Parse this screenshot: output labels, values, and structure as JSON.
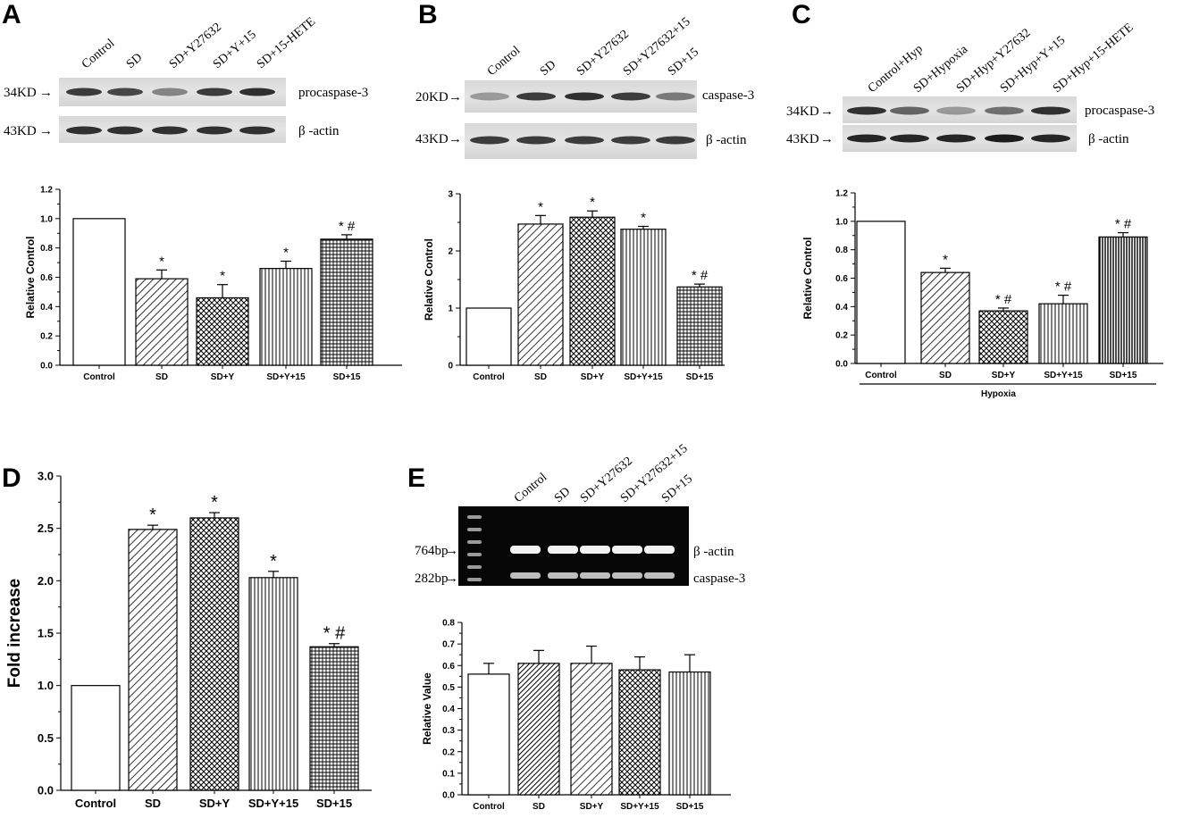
{
  "panels": {
    "A": {
      "letter": "A",
      "blot": {
        "lanes": [
          "Control",
          "SD",
          "SD+Y27632",
          "SD+Y+15",
          "SD+15-HETE"
        ],
        "rows": [
          {
            "marker": "34KD",
            "protein": "procaspase-3",
            "intensity": [
              0.8,
              0.75,
              0.45,
              0.8,
              0.85
            ]
          },
          {
            "marker": "43KD",
            "protein": "β -actin",
            "intensity": [
              0.85,
              0.85,
              0.85,
              0.85,
              0.85
            ]
          }
        ]
      }
    },
    "B": {
      "letter": "B",
      "blot": {
        "lanes": [
          "Control",
          "SD",
          "SD+Y27632",
          "SD+Y27632+15",
          "SD+15"
        ],
        "rows": [
          {
            "marker": "20KD",
            "protein": "caspase-3",
            "intensity": [
              0.35,
              0.8,
              0.85,
              0.8,
              0.5
            ]
          },
          {
            "marker": "43KD",
            "protein": "β -actin",
            "intensity": [
              0.8,
              0.8,
              0.8,
              0.8,
              0.8
            ]
          }
        ]
      }
    },
    "C": {
      "letter": "C",
      "blot": {
        "lanes": [
          "Control+Hyp",
          "SD+Hypoxia",
          "SD+Hyp+Y27632",
          "SD+Hyp+Y+15",
          "SD+Hyp+15-HETE"
        ],
        "rows": [
          {
            "marker": "34KD",
            "protein": "procaspase-3",
            "intensity": [
              0.85,
              0.6,
              0.35,
              0.55,
              0.85
            ]
          },
          {
            "marker": "43KD",
            "protein": "β -actin",
            "intensity": [
              0.9,
              0.9,
              0.9,
              0.95,
              0.9
            ]
          }
        ]
      },
      "group_label": "Hypoxia"
    },
    "D": {
      "letter": "D"
    },
    "E": {
      "letter": "E",
      "gel": {
        "lanes": [
          "Control",
          "SD",
          "SD+Y27632",
          "SD+Y27632+15",
          "SD+15"
        ],
        "rows": [
          {
            "marker": "764bp",
            "product": "β -actin"
          },
          {
            "marker": "282bp",
            "product": "caspase-3"
          }
        ]
      }
    }
  },
  "chart_data": [
    {
      "id": "A",
      "type": "bar",
      "categories": [
        "Control",
        "SD",
        "SD+Y",
        "SD+Y+15",
        "SD+15"
      ],
      "values": [
        1.0,
        0.59,
        0.46,
        0.66,
        0.86
      ],
      "errors": [
        0,
        0.06,
        0.09,
        0.05,
        0.03
      ],
      "significance": [
        "",
        "*",
        "*",
        "*",
        "* #"
      ],
      "fills": [
        "none",
        "diag",
        "cross",
        "vert",
        "grid"
      ],
      "ylabel": "Relative Control",
      "ylim": [
        0.0,
        1.2
      ],
      "yticks": [
        "0.0",
        "0.2",
        "0.4",
        "0.6",
        "0.8",
        "1.0",
        "1.2"
      ]
    },
    {
      "id": "B",
      "type": "bar",
      "categories": [
        "Control",
        "SD",
        "SD+Y",
        "SD+Y+15",
        "SD+15"
      ],
      "values": [
        1.0,
        2.47,
        2.59,
        2.38,
        1.37
      ],
      "errors": [
        0,
        0.15,
        0.11,
        0.05,
        0.05
      ],
      "significance": [
        "",
        "*",
        "*",
        "*",
        "* #"
      ],
      "fills": [
        "none",
        "diag",
        "cross",
        "vert",
        "grid"
      ],
      "ylabel": "Relative Control",
      "ylim": [
        0,
        3
      ],
      "yticks": [
        "0",
        "1",
        "2",
        "3"
      ]
    },
    {
      "id": "C",
      "type": "bar",
      "categories": [
        "Control",
        "SD",
        "SD+Y",
        "SD+Y+15",
        "SD+15"
      ],
      "values": [
        1.0,
        0.64,
        0.37,
        0.42,
        0.89
      ],
      "errors": [
        0,
        0.03,
        0.02,
        0.06,
        0.03
      ],
      "significance": [
        "",
        "*",
        "* #",
        "* #",
        "* #"
      ],
      "fills": [
        "none",
        "diag",
        "cross",
        "vert",
        "vert-dense"
      ],
      "ylabel": "Relative Control",
      "ylim": [
        0.0,
        1.2
      ],
      "yticks": [
        "0.0",
        "0.2",
        "0.4",
        "0.6",
        "0.8",
        "1.0",
        "1.2"
      ]
    },
    {
      "id": "D",
      "type": "bar",
      "categories": [
        "Control",
        "SD",
        "SD+Y",
        "SD+Y+15",
        "SD+15"
      ],
      "values": [
        1.0,
        2.49,
        2.6,
        2.03,
        1.37
      ],
      "errors": [
        0,
        0.04,
        0.05,
        0.06,
        0.03
      ],
      "significance": [
        "",
        "*",
        "*",
        "*",
        "* #"
      ],
      "fills": [
        "none",
        "diag",
        "cross",
        "vert",
        "grid"
      ],
      "ylabel": "Fold increase",
      "ylim": [
        0.0,
        3.0
      ],
      "yticks": [
        "0.0",
        "0.5",
        "1.0",
        "1.5",
        "2.0",
        "2.5",
        "3.0"
      ]
    },
    {
      "id": "E",
      "type": "bar",
      "categories": [
        "Control",
        "SD",
        "SD+Y",
        "SD+Y+15",
        "SD+15"
      ],
      "values": [
        0.56,
        0.61,
        0.61,
        0.58,
        0.57
      ],
      "errors": [
        0.05,
        0.06,
        0.08,
        0.06,
        0.08
      ],
      "significance": [
        "",
        "",
        "",
        "",
        ""
      ],
      "fills": [
        "none",
        "diag-dense",
        "diag",
        "cross",
        "vert"
      ],
      "ylabel": "Relative Value",
      "ylim": [
        0.0,
        0.8
      ],
      "yticks": [
        "0.0",
        "0.1",
        "0.2",
        "0.3",
        "0.4",
        "0.5",
        "0.6",
        "0.7",
        "0.8"
      ]
    }
  ]
}
